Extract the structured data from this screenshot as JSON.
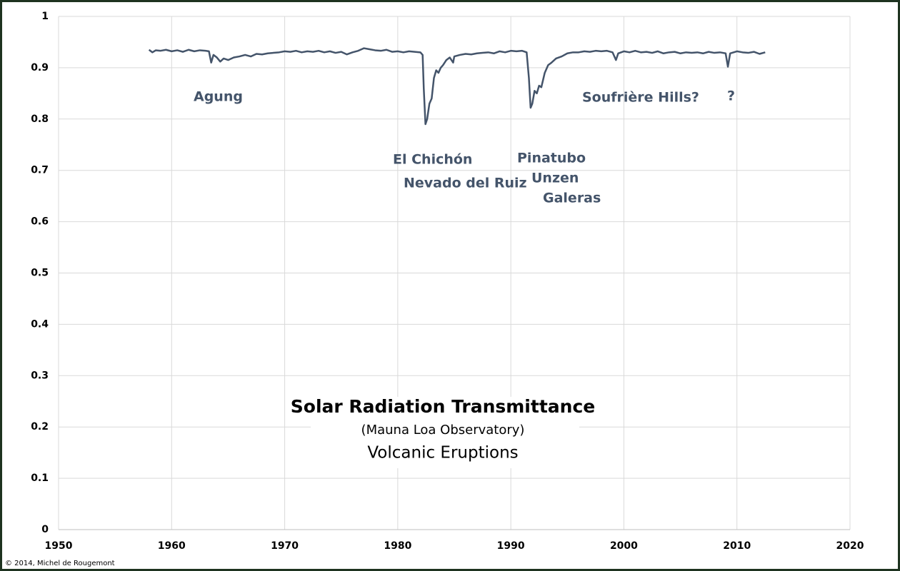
{
  "chart_data": {
    "type": "line",
    "title": "Solar Radiation Transmittance",
    "subtitle": "(Mauna Loa Observatory)",
    "caption": "Volcanic Eruptions",
    "credit": "© 2014, Michel de Rougemont",
    "annotations": [
      "Agung",
      "El Chichón",
      "Nevado del Ruiz",
      "Pinatubo",
      "Unzen",
      "Galeras",
      "Soufrière Hills?",
      "?"
    ],
    "color": "#44546a",
    "x": [
      1958.0,
      1958.3,
      1958.6,
      1959,
      1959.5,
      1960,
      1960.5,
      1961,
      1961.5,
      1962,
      1962.5,
      1963,
      1963.3,
      1963.5,
      1963.7,
      1964,
      1964.3,
      1964.6,
      1965,
      1965.5,
      1966,
      1966.5,
      1967,
      1967.5,
      1968,
      1968.5,
      1969,
      1969.5,
      1970,
      1970.5,
      1971,
      1971.5,
      1972,
      1972.5,
      1973,
      1973.5,
      1974,
      1974.5,
      1975,
      1975.5,
      1976,
      1976.5,
      1977,
      1977.5,
      1978,
      1978.5,
      1979,
      1979.5,
      1980,
      1980.5,
      1981,
      1981.5,
      1982,
      1982.2,
      1982.3,
      1982.45,
      1982.6,
      1982.8,
      1983,
      1983.2,
      1983.4,
      1983.6,
      1983.8,
      1984,
      1984.3,
      1984.6,
      1984.9,
      1985,
      1985.5,
      1986,
      1986.5,
      1987,
      1987.5,
      1988,
      1988.5,
      1989,
      1989.5,
      1990,
      1990.5,
      1991,
      1991.4,
      1991.6,
      1991.75,
      1991.9,
      1992.1,
      1992.3,
      1992.5,
      1992.7,
      1993,
      1993.3,
      1993.6,
      1994,
      1994.5,
      1995,
      1995.5,
      1996,
      1996.5,
      1997,
      1997.5,
      1998,
      1998.5,
      1999,
      1999.3,
      1999.5,
      2000,
      2000.5,
      2001,
      2001.5,
      2002,
      2002.5,
      2003,
      2003.5,
      2004,
      2004.5,
      2005,
      2005.5,
      2006,
      2006.5,
      2007,
      2007.5,
      2008,
      2008.5,
      2009,
      2009.2,
      2009.4,
      2010,
      2010.5,
      2011,
      2011.5,
      2012,
      2012.5
    ],
    "values": [
      0.935,
      0.93,
      0.934,
      0.933,
      0.935,
      0.932,
      0.934,
      0.931,
      0.935,
      0.932,
      0.934,
      0.933,
      0.932,
      0.91,
      0.925,
      0.92,
      0.912,
      0.918,
      0.915,
      0.92,
      0.922,
      0.925,
      0.922,
      0.927,
      0.926,
      0.928,
      0.929,
      0.93,
      0.932,
      0.931,
      0.933,
      0.93,
      0.932,
      0.931,
      0.933,
      0.93,
      0.932,
      0.929,
      0.931,
      0.926,
      0.93,
      0.933,
      0.938,
      0.936,
      0.934,
      0.933,
      0.935,
      0.931,
      0.932,
      0.93,
      0.932,
      0.931,
      0.93,
      0.925,
      0.86,
      0.79,
      0.8,
      0.83,
      0.84,
      0.88,
      0.895,
      0.89,
      0.9,
      0.905,
      0.915,
      0.92,
      0.91,
      0.922,
      0.925,
      0.927,
      0.926,
      0.928,
      0.929,
      0.93,
      0.928,
      0.932,
      0.93,
      0.933,
      0.932,
      0.933,
      0.93,
      0.88,
      0.822,
      0.83,
      0.855,
      0.85,
      0.865,
      0.862,
      0.89,
      0.905,
      0.91,
      0.918,
      0.922,
      0.928,
      0.93,
      0.93,
      0.932,
      0.931,
      0.933,
      0.932,
      0.933,
      0.93,
      0.915,
      0.928,
      0.932,
      0.93,
      0.933,
      0.93,
      0.931,
      0.929,
      0.932,
      0.928,
      0.93,
      0.931,
      0.928,
      0.93,
      0.929,
      0.93,
      0.928,
      0.931,
      0.929,
      0.93,
      0.928,
      0.902,
      0.928,
      0.932,
      0.93,
      0.929,
      0.931,
      0.927,
      0.93
    ],
    "xlim": [
      1950,
      2020
    ],
    "ylim": [
      0,
      1
    ],
    "xticks": [
      1950,
      1960,
      1970,
      1980,
      1990,
      2000,
      2010,
      2020
    ],
    "yticks": [
      0,
      0.1,
      0.2,
      0.3,
      0.4,
      0.5,
      0.6,
      0.7,
      0.8,
      0.9,
      1
    ],
    "grid": true
  }
}
